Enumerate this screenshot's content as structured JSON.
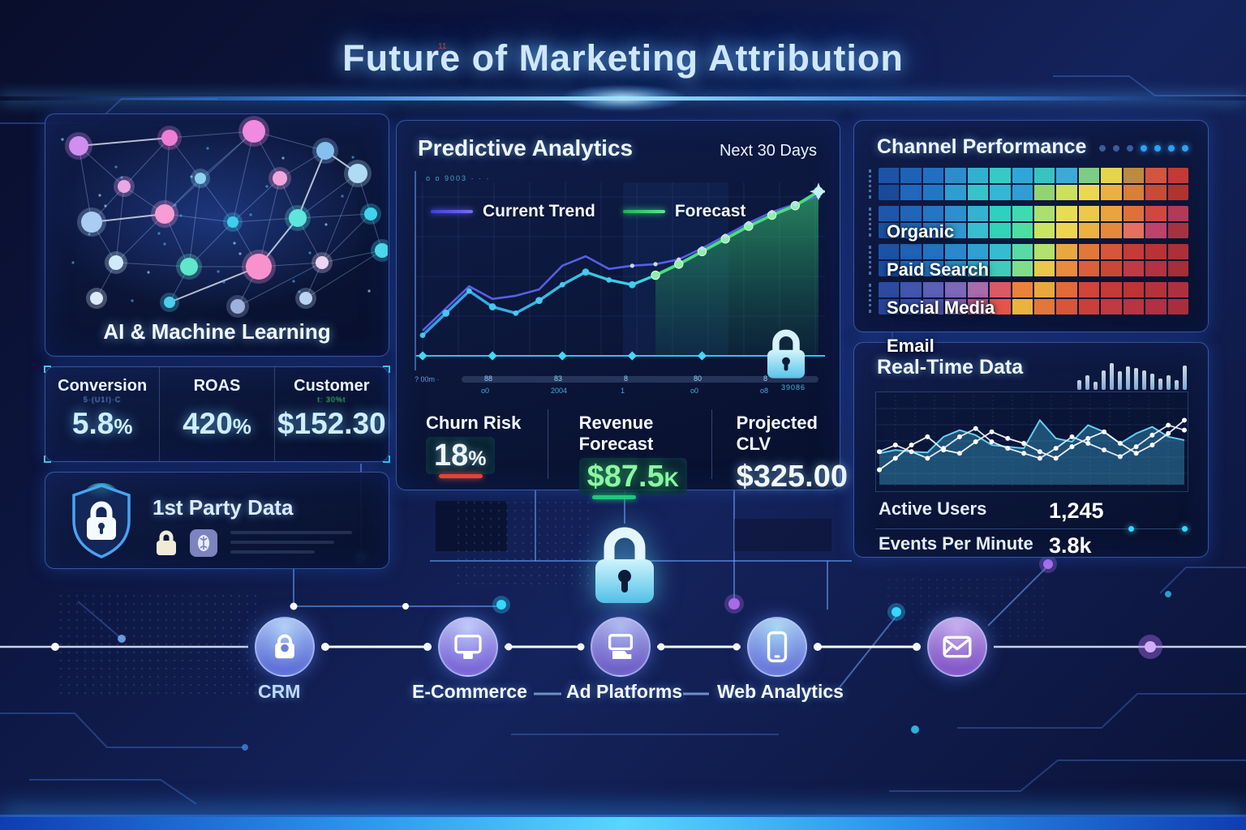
{
  "title": "Future of Marketing Attribution",
  "ai_panel": {
    "caption": "AI & Machine Learning"
  },
  "metrics": [
    {
      "label": "Conversion",
      "sub": "5·(U1I)·C",
      "value": "5.8",
      "suffix": "%"
    },
    {
      "label": "ROAS",
      "sub": "",
      "value": "420",
      "suffix": "%"
    },
    {
      "label": "Customer",
      "sub": "t: 30%t",
      "value": "$152.30",
      "suffix": ""
    }
  ],
  "first_party": {
    "title": "1st Party Data"
  },
  "predictive": {
    "title": "Predictive Analytics",
    "period": "Next 30 Days",
    "legend": [
      {
        "label": "Current Trend",
        "color": "#5a64ee"
      },
      {
        "label": "Forecast",
        "color": "#46e07a"
      }
    ],
    "footer": [
      {
        "label": "Churn Risk",
        "value": "18",
        "suffix": "%",
        "bar_color": "#e04438"
      },
      {
        "label": "Revenue Forecast",
        "value": "$87.5",
        "suffix": "K",
        "bar_color": "#1fc97a"
      },
      {
        "label": "Projected CLV",
        "value": "$325.00",
        "suffix": "",
        "bar_color": ""
      }
    ]
  },
  "channel": {
    "title": "Channel Performance",
    "rows": [
      "Organic",
      "Paid Search",
      "Social Media",
      "Email"
    ]
  },
  "realtime": {
    "title": "Real-Time Data",
    "stats": [
      {
        "label": "Active Users",
        "value": "1,245"
      },
      {
        "label": "Events Per Minute",
        "value": "3.8k"
      }
    ]
  },
  "flow": {
    "nodes": [
      {
        "label": "CRM",
        "icon": "shopping-bag"
      },
      {
        "label": "E-Commerce",
        "icon": "monitor"
      },
      {
        "label": "Ad Platforms",
        "icon": "laptop"
      },
      {
        "label": "Web Analytics",
        "icon": "smartphone"
      },
      {
        "label": "",
        "icon": "mail"
      }
    ]
  },
  "decor": {
    "title_glyph": "11",
    "chart_corner": "o o 9003   ·  · ·",
    "axis_left": "? 00m ·",
    "axis_ticks_top": [
      "88",
      "83",
      "8",
      "80",
      "8"
    ],
    "axis_ticks_sub": [
      "o0",
      "2004",
      "1",
      "o0",
      "o8"
    ],
    "chart_lock_caption": "39086"
  },
  "chart_data": [
    {
      "id": "predictive",
      "type": "line",
      "title": "Predictive Analytics",
      "subtitle": "Next 30 Days",
      "xlabel": "",
      "ylabel": "",
      "ylim": [
        0,
        110
      ],
      "grid": true,
      "legend_position": "top-left",
      "series": [
        {
          "name": "Current Trend",
          "color": "#5a64ee",
          "values": [
            16,
            30,
            44,
            36,
            38,
            42,
            57,
            63,
            55,
            57,
            58,
            61,
            68,
            76,
            84,
            91,
            96,
            101
          ]
        },
        {
          "name": "Forecast",
          "color": "#46e07a",
          "pre_color": "#36b8e8",
          "forecast_start_index": 10,
          "values": [
            13,
            27,
            41,
            31,
            27,
            35,
            45,
            53,
            48,
            45,
            51,
            58,
            66,
            74,
            82,
            89,
            95,
            104
          ]
        }
      ]
    },
    {
      "id": "channel_heatmap",
      "type": "heatmap",
      "title": "Channel Performance",
      "rows": [
        "Organic",
        "Paid Search",
        "Social Media",
        "Email"
      ],
      "cols": 14,
      "cells": {
        "Organic": [
          [
            "#1c53a6",
            "#1e62b6",
            "#2070c2",
            "#2b8ecb",
            "#30b2cf",
            "#37c9c6",
            "#2fa6d8",
            "#36c4c0",
            "#3caad8",
            "#7fcc84",
            "#e5d44e",
            "#bd8a40",
            "#d2563c",
            "#c23a34"
          ],
          [
            "#1a4a9a",
            "#1f68bc",
            "#2277c4",
            "#2e9ed0",
            "#39c2ca",
            "#34b7d6",
            "#309ed4",
            "#92d473",
            "#cce05a",
            "#ecd84f",
            "#e9b23f",
            "#d97f36",
            "#c94a38",
            "#b23230"
          ]
        ],
        "Paid Search": [
          [
            "#1d57ac",
            "#1f66ba",
            "#2376c4",
            "#2c90ce",
            "#34b2d2",
            "#30d0c0",
            "#3edbb0",
            "#aae070",
            "#e9dc55",
            "#edc84a",
            "#e9a43e",
            "#e0703a",
            "#cf4840",
            "#b23a56"
          ],
          [
            "#1b50a4",
            "#2169bc",
            "#277ac6",
            "#3098d0",
            "#37bed0",
            "#30d4b8",
            "#4cdfa4",
            "#cae363",
            "#eed54e",
            "#eab23f",
            "#e4883a",
            "#e66f62",
            "#c04269",
            "#a63241"
          ]
        ],
        "Social Media": [
          [
            "#1c52a6",
            "#1f62b6",
            "#2372c2",
            "#2b88cb",
            "#30a0d2",
            "#36bcd0",
            "#59d9a6",
            "#b0e26d",
            "#e9a83f",
            "#e2773a",
            "#d5563a",
            "#c43b38",
            "#b93336",
            "#ad2f3a"
          ],
          [
            "#1a4c9e",
            "#2069bc",
            "#2579c6",
            "#2d92ce",
            "#34b2d2",
            "#3fcbba",
            "#80dd89",
            "#e9c84a",
            "#e98a3c",
            "#db5f3a",
            "#ca4638",
            "#bf3a44",
            "#b23240",
            "#a52e38"
          ]
        ],
        "Email": [
          [
            "#2c4ba0",
            "#4056ae",
            "#5b60b4",
            "#7c69b8",
            "#a86bac",
            "#da5a62",
            "#e9833c",
            "#e9a83f",
            "#e06a3a",
            "#d14438",
            "#c43a36",
            "#bc3434",
            "#b53338",
            "#ae3040"
          ],
          [
            "#28449a",
            "#3b51a8",
            "#575ab0",
            "#8c65b0",
            "#c25a80",
            "#e55548",
            "#eab23f",
            "#e2773a",
            "#d5563a",
            "#c94038",
            "#c03a40",
            "#b83440",
            "#b03044",
            "#a92e3c"
          ]
        ]
      }
    },
    {
      "id": "realtime",
      "type": "line",
      "title": "Real-Time Data",
      "ylim": [
        0,
        100
      ],
      "grid": true,
      "series": [
        {
          "name": "throughput-area",
          "render": "area",
          "color": "#49c8f5",
          "values": [
            38,
            42,
            40,
            39,
            58,
            66,
            60,
            48,
            46,
            44,
            78,
            56,
            52,
            72,
            64,
            50,
            62,
            70,
            58,
            54
          ]
        },
        {
          "name": "stream-1",
          "render": "line",
          "color": "#ffffff",
          "values": [
            18,
            32,
            48,
            58,
            42,
            38,
            52,
            64,
            56,
            50,
            40,
            32,
            46,
            56,
            64,
            50,
            38,
            48,
            62,
            78
          ]
        },
        {
          "name": "stream-2",
          "render": "line",
          "color": "#e8f4ff",
          "values": [
            40,
            48,
            40,
            32,
            44,
            58,
            68,
            52,
            44,
            38,
            32,
            44,
            58,
            50,
            42,
            34,
            46,
            60,
            72,
            66
          ]
        }
      ]
    },
    {
      "id": "realtime_sparkbars",
      "type": "bar",
      "values": [
        28,
        44,
        24,
        58,
        78,
        54,
        68,
        64,
        58,
        48,
        34,
        44,
        28,
        72
      ]
    }
  ]
}
